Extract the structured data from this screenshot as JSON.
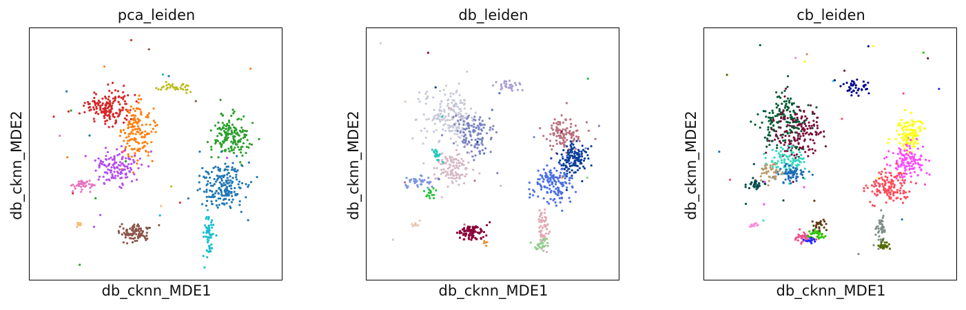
{
  "chart_data": [
    {
      "type": "scatter",
      "title": "pca_leiden",
      "xlabel": "db_cknn_MDE1",
      "ylabel": "db_cknn_MDE2",
      "xlim": [
        0,
        100
      ],
      "ylim": [
        0,
        100
      ],
      "grid": false,
      "ticks": false,
      "clusters": [
        {
          "color": "#d62728",
          "cx": 31,
          "cy": 32,
          "rx": 8,
          "ry": 6,
          "n": 160
        },
        {
          "color": "#ff7f0e",
          "cx": 43,
          "cy": 41,
          "rx": 6,
          "ry": 10,
          "n": 150
        },
        {
          "color": "#b44cf0",
          "cx": 35,
          "cy": 55,
          "rx": 8,
          "ry": 6,
          "n": 130
        },
        {
          "color": "#e377c2",
          "cx": 21,
          "cy": 62,
          "rx": 6,
          "ry": 2,
          "n": 40
        },
        {
          "color": "#bcbd22",
          "cx": 58,
          "cy": 24,
          "rx": 6,
          "ry": 2,
          "n": 35
        },
        {
          "color": "#2ca02c",
          "cx": 80,
          "cy": 43,
          "rx": 7,
          "ry": 9,
          "n": 170
        },
        {
          "color": "#1f77b4",
          "cx": 76,
          "cy": 63,
          "rx": 8,
          "ry": 8,
          "n": 190
        },
        {
          "color": "#17becf",
          "cx": 71,
          "cy": 82,
          "rx": 2,
          "ry": 8,
          "n": 60
        },
        {
          "color": "#8c564b",
          "cx": 42,
          "cy": 81,
          "rx": 5,
          "ry": 3,
          "n": 90
        },
        {
          "color": "#ffbb78",
          "cx": 20,
          "cy": 78,
          "rx": 2,
          "ry": 1,
          "n": 10
        }
      ]
    },
    {
      "type": "scatter",
      "title": "db_leiden",
      "xlabel": "db_cknn_MDE1",
      "ylabel": "db_cknn_MDE2",
      "xlim": [
        0,
        100
      ],
      "ylim": [
        0,
        100
      ],
      "grid": false,
      "ticks": false,
      "clusters": [
        {
          "color": "#c7c9d9",
          "cx": 33,
          "cy": 35,
          "rx": 10,
          "ry": 9,
          "n": 170
        },
        {
          "color": "#7b84c2",
          "cx": 42,
          "cy": 42,
          "rx": 7,
          "ry": 8,
          "n": 120
        },
        {
          "color": "#d6b8c4",
          "cx": 34,
          "cy": 55,
          "rx": 6,
          "ry": 6,
          "n": 110
        },
        {
          "color": "#7b96dd",
          "cx": 21,
          "cy": 61,
          "rx": 6,
          "ry": 2,
          "n": 40
        },
        {
          "color": "#ab9fd6",
          "cx": 56,
          "cy": 23,
          "rx": 6,
          "ry": 2,
          "n": 30
        },
        {
          "color": "#b9727f",
          "cx": 78,
          "cy": 42,
          "rx": 6,
          "ry": 6,
          "n": 110
        },
        {
          "color": "#0b3d99",
          "cx": 82,
          "cy": 52,
          "rx": 5,
          "ry": 6,
          "n": 130
        },
        {
          "color": "#4a6fe3",
          "cx": 74,
          "cy": 62,
          "rx": 7,
          "ry": 7,
          "n": 140
        },
        {
          "color": "#e0aab2",
          "cx": 70,
          "cy": 80,
          "rx": 2,
          "ry": 6,
          "n": 50
        },
        {
          "color": "#8fd18c",
          "cx": 69,
          "cy": 86,
          "rx": 3,
          "ry": 2,
          "n": 25
        },
        {
          "color": "#8a0038",
          "cx": 42,
          "cy": 81,
          "rx": 5,
          "ry": 3,
          "n": 90
        },
        {
          "color": "#e8c9b8",
          "cx": 20,
          "cy": 78,
          "rx": 2,
          "ry": 1,
          "n": 10
        },
        {
          "color": "#26c13f",
          "cx": 25,
          "cy": 66,
          "rx": 2,
          "ry": 2,
          "n": 15
        },
        {
          "color": "#21c8c3",
          "cx": 28,
          "cy": 50,
          "rx": 2,
          "ry": 3,
          "n": 20
        },
        {
          "color": "#e8903c",
          "cx": 47,
          "cy": 85,
          "rx": 1,
          "ry": 1,
          "n": 5
        }
      ]
    },
    {
      "type": "scatter",
      "title": "cb_leiden",
      "xlabel": "db_cknn_MDE1",
      "ylabel": "db_cknn_MDE2",
      "xlim": [
        0,
        100
      ],
      "ylim": [
        0,
        100
      ],
      "grid": false,
      "ticks": false,
      "clusters": [
        {
          "color": "#005a32",
          "cx": 32,
          "cy": 37,
          "rx": 9,
          "ry": 10,
          "n": 160
        },
        {
          "color": "#7a0f3a",
          "cx": 38,
          "cy": 42,
          "rx": 9,
          "ry": 10,
          "n": 150
        },
        {
          "color": "#30d9c0",
          "cx": 33,
          "cy": 53,
          "rx": 7,
          "ry": 5,
          "n": 90
        },
        {
          "color": "#1f6fb4",
          "cx": 35,
          "cy": 58,
          "rx": 5,
          "ry": 3,
          "n": 60
        },
        {
          "color": "#b59a6c",
          "cx": 26,
          "cy": 57,
          "rx": 4,
          "ry": 3,
          "n": 40
        },
        {
          "color": "#004b4b",
          "cx": 20,
          "cy": 62,
          "rx": 4,
          "ry": 2,
          "n": 30
        },
        {
          "color": "#00008b",
          "cx": 59,
          "cy": 24,
          "rx": 6,
          "ry": 3,
          "n": 40
        },
        {
          "color": "#ffff00",
          "cx": 81,
          "cy": 42,
          "rx": 5,
          "ry": 6,
          "n": 110
        },
        {
          "color": "#ff47ff",
          "cx": 80,
          "cy": 53,
          "rx": 6,
          "ry": 6,
          "n": 120
        },
        {
          "color": "#ff4a5a",
          "cx": 73,
          "cy": 63,
          "rx": 7,
          "ry": 6,
          "n": 130
        },
        {
          "color": "#80908c",
          "cx": 70,
          "cy": 79,
          "rx": 2,
          "ry": 6,
          "n": 50
        },
        {
          "color": "#556b00",
          "cx": 71,
          "cy": 86,
          "rx": 3,
          "ry": 2,
          "n": 25
        },
        {
          "color": "#ee4e8a",
          "cx": 39,
          "cy": 83,
          "rx": 3,
          "ry": 2,
          "n": 35
        },
        {
          "color": "#33c30c",
          "cx": 44,
          "cy": 82,
          "rx": 3,
          "ry": 2,
          "n": 35
        },
        {
          "color": "#603c14",
          "cx": 46,
          "cy": 78,
          "rx": 3,
          "ry": 2,
          "n": 25
        },
        {
          "color": "#ff8ad8",
          "cx": 20,
          "cy": 78,
          "rx": 2,
          "ry": 1,
          "n": 10
        },
        {
          "color": "#2525ff",
          "cx": 42,
          "cy": 84,
          "rx": 2,
          "ry": 1,
          "n": 15
        }
      ]
    }
  ]
}
